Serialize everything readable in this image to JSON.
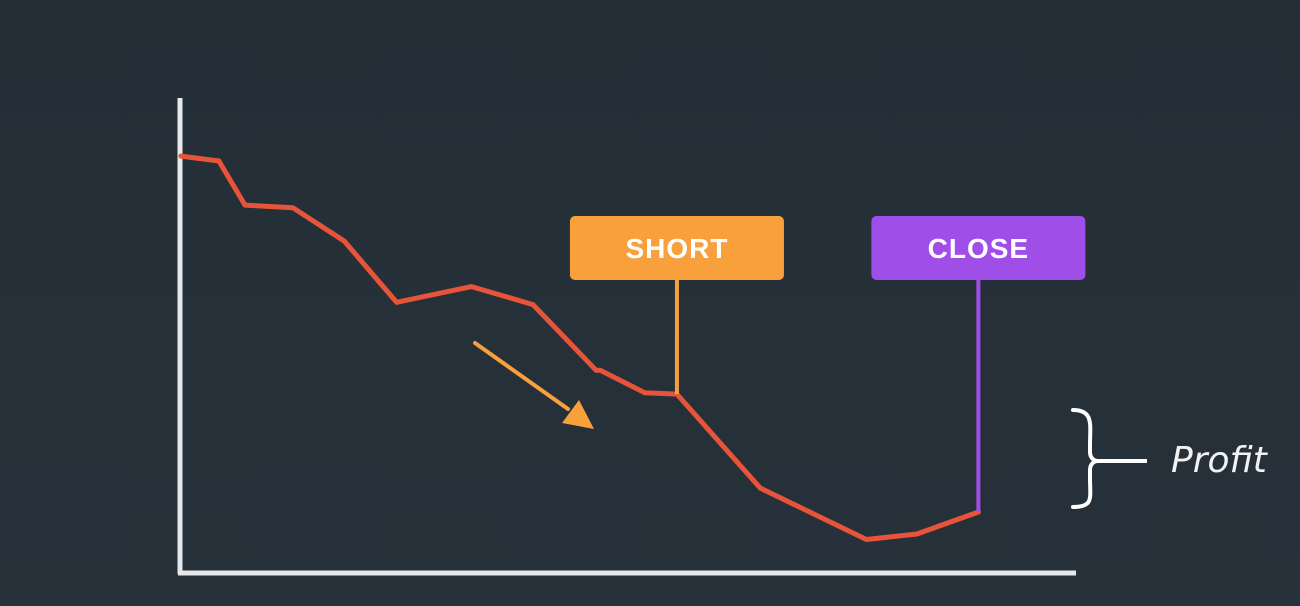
{
  "chart_data": {
    "type": "line",
    "title": "",
    "xlabel": "",
    "ylabel": "",
    "axis_ticks": false,
    "grid": false,
    "xlim": [
      0,
      100
    ],
    "ylim": [
      0,
      100
    ],
    "series": [
      {
        "color": "#e8543a",
        "x": [
          0,
          4.5,
          7.6,
          13.3,
          19.4,
          25.6,
          34.5,
          41.8,
          49.3,
          49.8,
          55.1,
          58.9,
          68.8,
          81.4,
          87.4,
          94.7
        ],
        "y": [
          91.1,
          90,
          80.2,
          79.6,
          72.2,
          58.6,
          62.1,
          58.1,
          43.5,
          43.5,
          38.5,
          38.2,
          17.3,
          5.9,
          7.1,
          12
        ]
      }
    ],
    "markers": [
      {
        "label": "SHORT",
        "x": 58.9,
        "y": 38.2,
        "color": "#f7a03c"
      },
      {
        "label": "CLOSE",
        "x": 94.7,
        "y": 12,
        "color": "#a04ee8"
      }
    ],
    "trend_arrow": {
      "color": "#f7a03c",
      "direction": "down-right"
    },
    "annotation": {
      "label": "Profit",
      "type": "brace"
    }
  }
}
